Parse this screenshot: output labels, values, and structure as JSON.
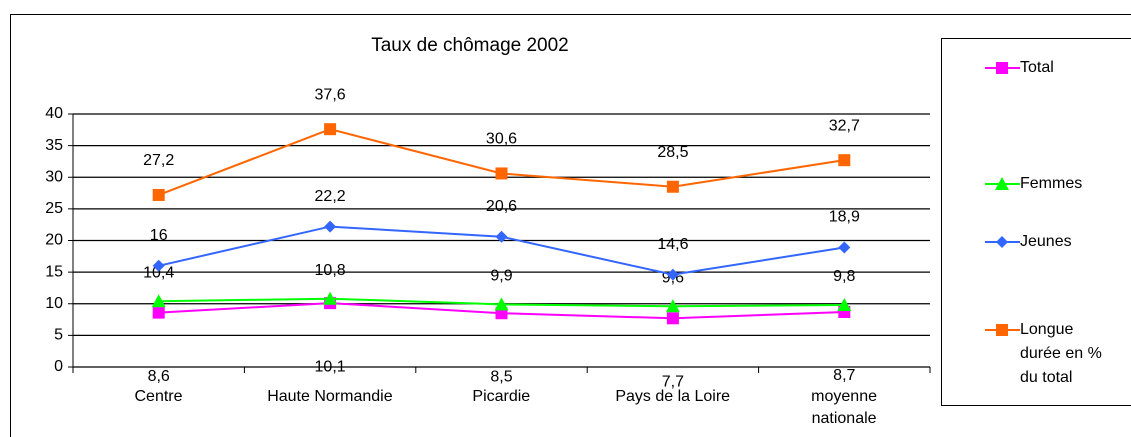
{
  "chart_data": {
    "type": "line",
    "title": "Taux de chômage 2002",
    "categories": [
      "Centre",
      "Haute Normandie",
      "Picardie",
      "Pays de la Loire",
      "moyenne nationale"
    ],
    "series": [
      {
        "name": "Total",
        "color": "#ff00ff",
        "marker": "square",
        "values": [
          8.6,
          10.1,
          8.5,
          7.7,
          8.7
        ],
        "value_labels": [
          "8,6",
          "10,1",
          "8,5",
          "7,7",
          "8,7"
        ]
      },
      {
        "name": "Femmes",
        "color": "#00ff00",
        "marker": "triangle",
        "values": [
          10.4,
          10.8,
          9.9,
          9.6,
          9.8
        ],
        "value_labels": [
          "10,4",
          "10,8",
          "9,9",
          "9,6",
          "9,8"
        ]
      },
      {
        "name": "Jeunes",
        "color": "#3366ff",
        "marker": "diamond",
        "values": [
          16,
          22.2,
          20.6,
          14.6,
          18.9
        ],
        "value_labels": [
          "16",
          "22,2",
          "20,6",
          "14,6",
          "18,9"
        ]
      },
      {
        "name": "Longue durée en % du total",
        "color": "#ff6600",
        "marker": "square",
        "values": [
          27.2,
          37.6,
          30.6,
          28.5,
          32.7
        ],
        "value_labels": [
          "27,2",
          "37,6",
          "30,6",
          "28,5",
          "32,7"
        ]
      }
    ],
    "ylim": [
      0,
      40
    ],
    "yticks": [
      0,
      5,
      10,
      15,
      20,
      25,
      30,
      35,
      40
    ],
    "grid": true,
    "legend": "right"
  }
}
